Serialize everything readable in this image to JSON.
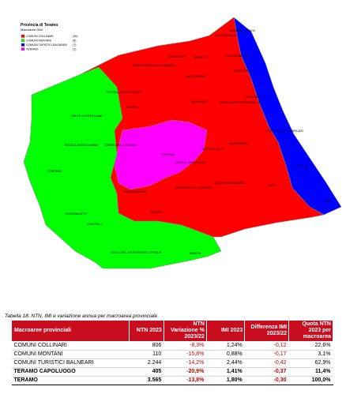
{
  "chart_data": [
    {
      "type": "map",
      "title": "Provincia di Teramo",
      "subtitle": "Macroaree OMI",
      "legend": [
        {
          "label": "COMUNI COLLINARI",
          "count": "(30)",
          "color": "#ff0000"
        },
        {
          "label": "COMUNI MONTANI",
          "count": "(9)",
          "color": "#00ff00"
        },
        {
          "label": "COMUNI TURISTICI BALNEARI",
          "count": "(7)",
          "color": "#0000ff"
        },
        {
          "label": "TERAMO",
          "count": "(1)",
          "color": "#ff00ff"
        }
      ],
      "place_labels": [
        "TORANO NUOVO",
        "COLONNELLA",
        "NERETO",
        "SANT'EGIDIO ALLA VIBRATA",
        "CORROPOLI",
        "ALBA ADRIATICA",
        "SANT'OMERO",
        "TORTORETO",
        "CIVITELLA DEL TRONTO",
        "CAMPLI",
        "BELLANTE",
        "MOSCIANO SANT'ANGELO",
        "GIULIANOVA",
        "VALLE CASTELLANA",
        "ROCCA SANTA MARIA",
        "CORTINO",
        "TORRICELLA SICURA",
        "TERAMO",
        "CASTELLALTO",
        "NOTARESCO",
        "ROSETO DEGLI ABRUZZI",
        "PINETO",
        "CASTEL CASTAGNA",
        "ATRI",
        "CROGNALETO",
        "FANO ADRIANO",
        "MONTORIO AL VOMANO",
        "ISOLA DEL GRAN SASSO D'ITALIA",
        "CASTELLI",
        "ARSITA",
        "SILVI",
        "CELLINO ATTANASIO",
        "BISENTI"
      ]
    },
    {
      "type": "table",
      "title": "Tabella 18: NTN, IMI e variazione annua per macroarea provinciale",
      "columns": [
        "Macroaree provinciali",
        "NTN 2023",
        "NTN Variazione % 2023/22",
        "IMI 2023",
        "Differenza IMI 2023/22",
        "Quota NTN 2023 per macroarea"
      ],
      "rows": [
        [
          "COMUNI COLLINARI",
          "806",
          "-8,3%",
          "1,24%",
          "-0,12",
          "22,6%"
        ],
        [
          "COMUNI MONTANI",
          "110",
          "-15,8%",
          "0,88%",
          "-0,17",
          "3,1%"
        ],
        [
          "COMUNI TURISTICI BALNEARI",
          "2.244",
          "-14,2%",
          "2,44%",
          "-0,42",
          "62,9%"
        ],
        [
          "TERAMO CAPOLUOGO",
          "405",
          "-20,9%",
          "1,41%",
          "-0,37",
          "11,4%"
        ],
        [
          "TERAMO",
          "3.565",
          "-13,8%",
          "1,80%",
          "-0,30",
          "100,0%"
        ]
      ]
    }
  ]
}
